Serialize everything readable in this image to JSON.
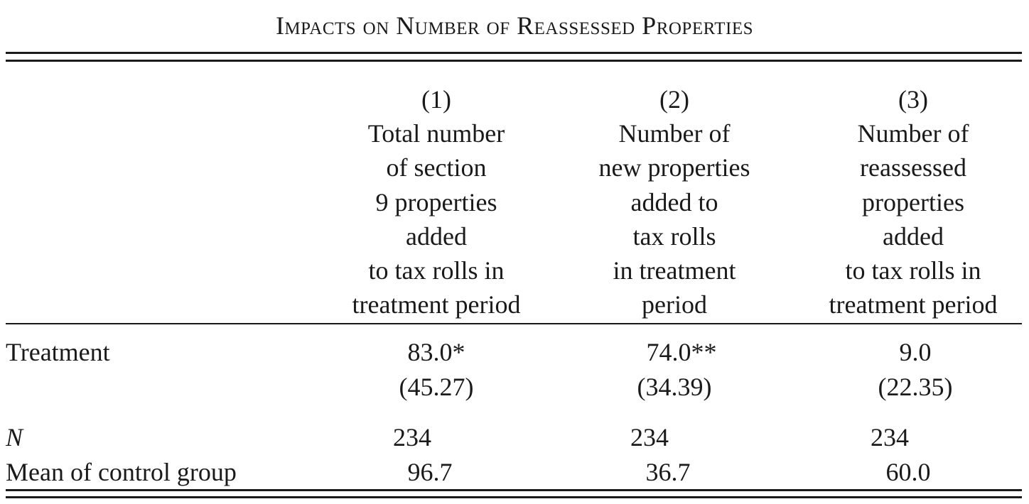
{
  "table": {
    "title": "Impacts on Number of Reassessed Properties",
    "columns": [
      {
        "number": "(1)",
        "header_lines": [
          "Total number",
          "of section",
          "9 properties",
          "added",
          "to tax rolls in",
          "treatment period"
        ]
      },
      {
        "number": "(2)",
        "header_lines": [
          "Number of",
          "new properties",
          "added to",
          "tax rolls",
          "in treatment",
          "period"
        ]
      },
      {
        "number": "(3)",
        "header_lines": [
          "Number of",
          "reassessed",
          "properties",
          "added",
          "to tax rolls in",
          "treatment period"
        ]
      }
    ],
    "rows": {
      "treatment": {
        "label": "Treatment",
        "coefficients": [
          "83.0*",
          "74.0**",
          "9.0"
        ],
        "standard_errors": [
          "(45.27)",
          "(34.39)",
          "(22.35)"
        ]
      },
      "n": {
        "label": "N",
        "values": [
          "234",
          "234",
          "234"
        ]
      },
      "control_mean": {
        "label": "Mean of control group",
        "values": [
          "96.7",
          "36.7",
          "60.0"
        ]
      }
    }
  }
}
